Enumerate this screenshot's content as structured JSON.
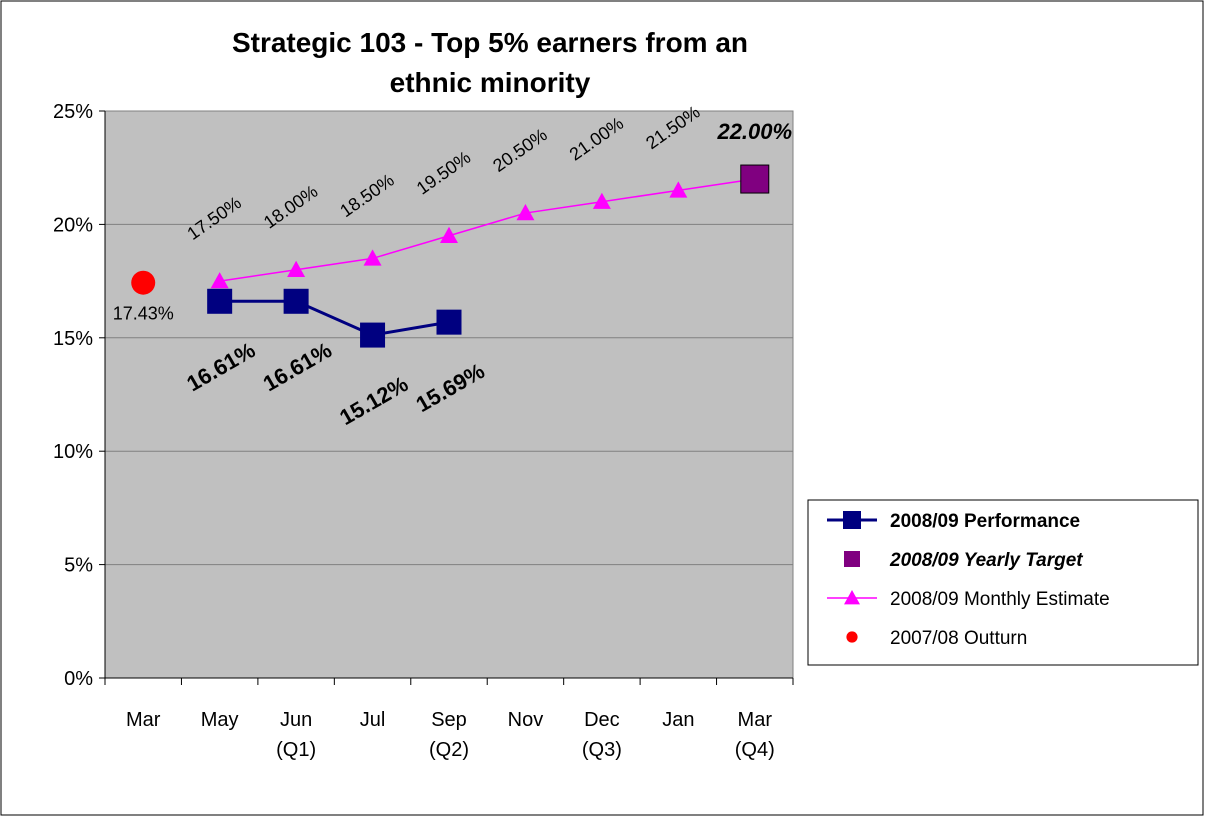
{
  "chart_data": {
    "type": "line",
    "title": "Strategic 103 - Top 5% earners from an\nethnic minority",
    "categories": [
      "Mar",
      "May",
      "Jun\n(Q1)",
      "Jul",
      "Sep\n(Q2)",
      "Nov",
      "Dec\n(Q3)",
      "Jan",
      "Mar\n(Q4)"
    ],
    "ylim": [
      0,
      25
    ],
    "yticks": [
      {
        "value": 0,
        "label": "0%"
      },
      {
        "value": 5,
        "label": "5%"
      },
      {
        "value": 10,
        "label": "10%"
      },
      {
        "value": 15,
        "label": "15%"
      },
      {
        "value": 20,
        "label": "20%"
      },
      {
        "value": 25,
        "label": "25%"
      }
    ],
    "grid": true,
    "legend": "right",
    "series": [
      {
        "name": "2008/09 Performance",
        "color": "#000080",
        "marker": "square",
        "line": true,
        "values": [
          null,
          16.61,
          16.61,
          15.12,
          15.69,
          null,
          null,
          null,
          null
        ],
        "value_labels": [
          null,
          "16.61%",
          "16.61%",
          "15.12%",
          "15.69%",
          null,
          null,
          null,
          null
        ]
      },
      {
        "name": "2008/09 Yearly Target",
        "color": "#800080",
        "marker": "square",
        "line": false,
        "values": [
          null,
          null,
          null,
          null,
          null,
          null,
          null,
          null,
          22
        ],
        "value_labels": [
          null,
          null,
          null,
          null,
          null,
          null,
          null,
          null,
          "22.00%"
        ]
      },
      {
        "name": "2008/09 Monthly Estimate",
        "color": "#ff00ff",
        "marker": "triangle",
        "line": true,
        "values": [
          null,
          17.5,
          18,
          18.5,
          19.5,
          20.5,
          21,
          21.5,
          22
        ],
        "value_labels": [
          null,
          "17.50%",
          "18.00%",
          "18.50%",
          "19.50%",
          "20.50%",
          "21.00%",
          "21.50%",
          null
        ]
      },
      {
        "name": "2007/08 Outturn",
        "color": "#ff0000",
        "marker": "circle",
        "line": false,
        "values": [
          17.43,
          null,
          null,
          null,
          null,
          null,
          null,
          null,
          null
        ],
        "value_labels": [
          "17.43%",
          null,
          null,
          null,
          null,
          null,
          null,
          null,
          null
        ]
      }
    ]
  }
}
